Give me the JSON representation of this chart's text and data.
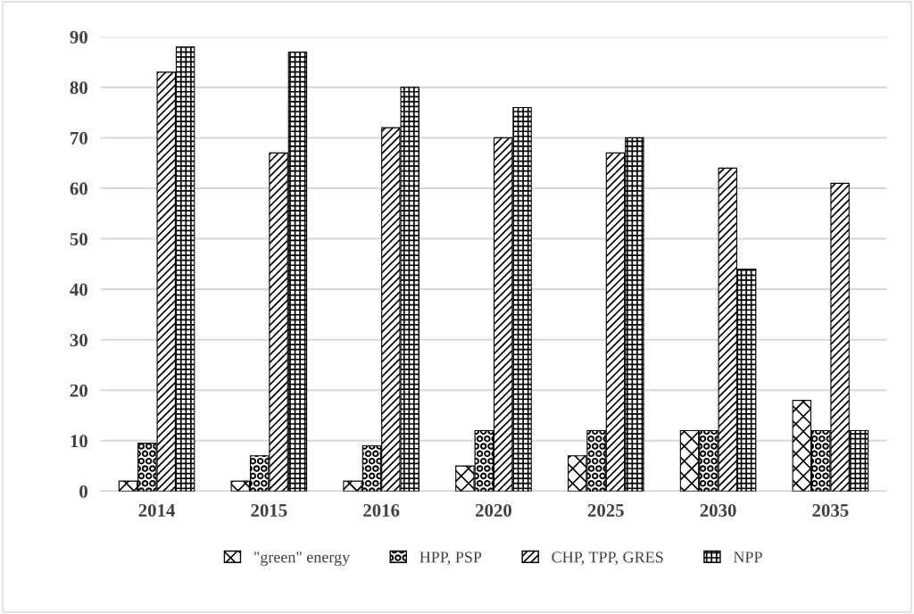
{
  "chart_data": {
    "type": "bar",
    "categories": [
      "2014",
      "2015",
      "2016",
      "2020",
      "2025",
      "2030",
      "2035"
    ],
    "series": [
      {
        "name": "\"green\" energy",
        "color": "#000000",
        "values": [
          2,
          2,
          2,
          5,
          7,
          12,
          18
        ]
      },
      {
        "name": "HPP, PSP",
        "color": "#000000",
        "values": [
          9.5,
          7,
          9,
          12,
          12,
          12,
          12
        ]
      },
      {
        "name": "CHP, TPP, GRES",
        "color": "#000000",
        "values": [
          83,
          67,
          72,
          70,
          67,
          64,
          61
        ]
      },
      {
        "name": "NPP",
        "color": "#000000",
        "values": [
          88,
          87,
          80,
          76,
          70,
          44,
          12
        ]
      }
    ],
    "ylim": [
      0,
      90
    ],
    "yticks": [
      0,
      10,
      20,
      30,
      40,
      50,
      60,
      70,
      80,
      90
    ],
    "grid": "y",
    "legend": "bottom"
  }
}
